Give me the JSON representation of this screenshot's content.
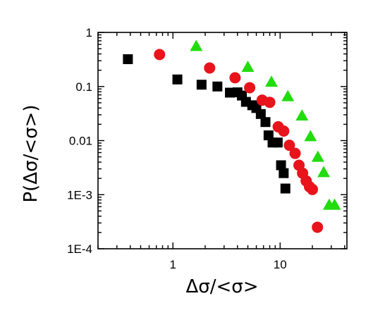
{
  "chart_data": {
    "type": "scatter",
    "title": "",
    "xlabel": "Δσ/<σ>",
    "ylabel": "P(Δσ/<σ>)",
    "xscale": "log",
    "yscale": "log",
    "xlim": [
      0.2,
      42
    ],
    "ylim": [
      0.0001,
      1
    ],
    "x_ticks": [
      {
        "value": 1,
        "label": "1"
      },
      {
        "value": 10,
        "label": "10"
      }
    ],
    "y_ticks": [
      {
        "value": 1,
        "label": "1"
      },
      {
        "value": 0.1,
        "label": "0.1"
      },
      {
        "value": 0.01,
        "label": "0.01"
      },
      {
        "value": 0.001,
        "label": "1E-3"
      },
      {
        "value": 0.0001,
        "label": "1E-4"
      }
    ],
    "grid": false,
    "legend": "none",
    "series": [
      {
        "marker": "square",
        "color": "#000000",
        "points": [
          [
            0.38,
            0.32
          ],
          [
            1.1,
            0.135
          ],
          [
            1.85,
            0.108
          ],
          [
            2.6,
            0.1
          ],
          [
            3.4,
            0.077
          ],
          [
            4.0,
            0.078
          ],
          [
            4.4,
            0.068
          ],
          [
            4.8,
            0.052
          ],
          [
            5.5,
            0.045
          ],
          [
            6.0,
            0.04
          ],
          [
            6.6,
            0.031
          ],
          [
            7.3,
            0.022
          ],
          [
            7.8,
            0.0125
          ],
          [
            8.5,
            0.0092
          ],
          [
            9.5,
            0.0092
          ],
          [
            10.2,
            0.0035
          ],
          [
            10.8,
            0.0025
          ],
          [
            11.2,
            0.0013
          ]
        ]
      },
      {
        "marker": "circle",
        "color": "#e8131b",
        "points": [
          [
            0.75,
            0.39
          ],
          [
            2.2,
            0.22
          ],
          [
            3.8,
            0.145
          ],
          [
            5.2,
            0.095
          ],
          [
            6.8,
            0.056
          ],
          [
            8.0,
            0.051
          ],
          [
            9.6,
            0.018
          ],
          [
            10.8,
            0.015
          ],
          [
            12.2,
            0.0082
          ],
          [
            13.8,
            0.0058
          ],
          [
            15.0,
            0.0035
          ],
          [
            16.2,
            0.0025
          ],
          [
            17.5,
            0.0018
          ],
          [
            18.8,
            0.0014
          ],
          [
            20.0,
            0.00125
          ],
          [
            22.3,
            0.00025
          ]
        ]
      },
      {
        "marker": "triangle",
        "color": "#22dc0e",
        "points": [
          [
            1.65,
            0.56
          ],
          [
            5.0,
            0.23
          ],
          [
            8.3,
            0.122
          ],
          [
            11.8,
            0.066
          ],
          [
            16.0,
            0.029
          ],
          [
            19.2,
            0.012
          ],
          [
            22.5,
            0.005
          ],
          [
            25.5,
            0.0026
          ],
          [
            28.7,
            0.00065
          ],
          [
            32.2,
            0.00065
          ]
        ]
      }
    ]
  }
}
